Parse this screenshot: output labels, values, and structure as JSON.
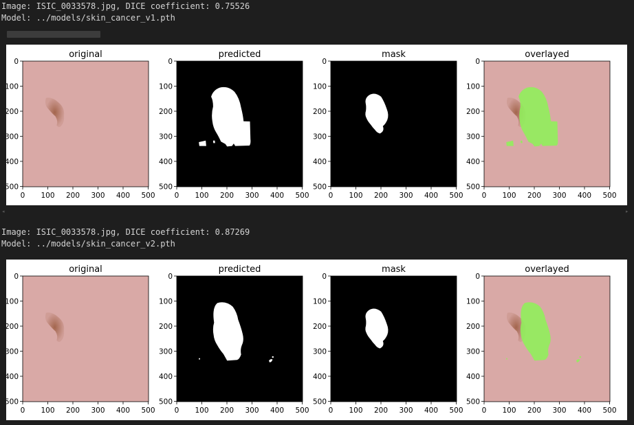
{
  "outputs": [
    {
      "header_lines": [
        "Image: ISIC_0033578.jpg, DICE coefficient: 0.75526",
        "Model: ../models/skin_cancer_v1.pth"
      ]
    },
    {
      "header_lines": [
        "Image: ISIC_0033578.jpg, DICE coefficient: 0.87269",
        "Model: ../models/skin_cancer_v2.pth"
      ]
    }
  ],
  "panel_titles": [
    "original",
    "predicted",
    "mask",
    "overlayed"
  ],
  "axis_ticks": [
    "0",
    "100",
    "200",
    "300",
    "400",
    "500"
  ],
  "colors": {
    "background": "#1e1e1e",
    "text": "#d4d4d4",
    "skin": "#d9a9a6",
    "lesion": "#9a5a3e",
    "mask_fg": "#ffffff",
    "mask_bg": "#000000",
    "overlay_green": "#8ef05a"
  }
}
